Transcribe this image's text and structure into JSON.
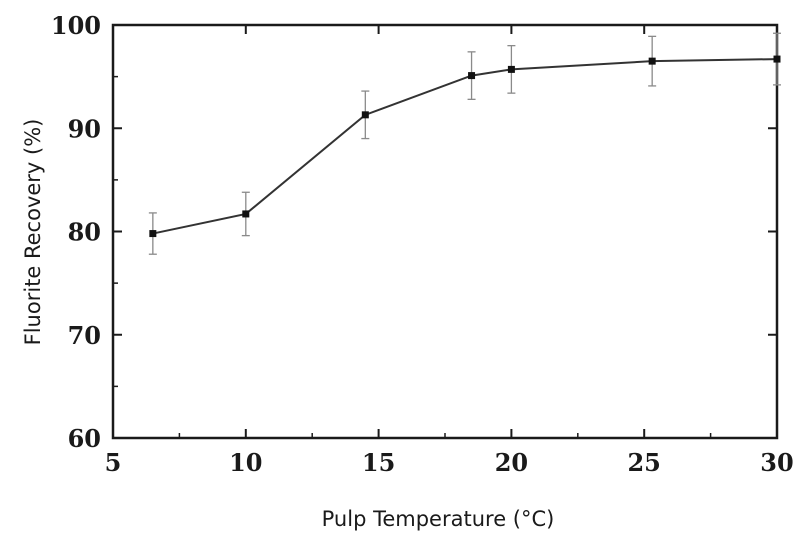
{
  "chart_data": {
    "type": "line",
    "xlabel": "Pulp Temperature (°C)",
    "ylabel": "Fluorite Recovery (%)",
    "xlim": [
      5,
      30
    ],
    "ylim": [
      60,
      100
    ],
    "xticks": [
      5,
      10,
      15,
      20,
      25,
      30
    ],
    "yticks": [
      60,
      70,
      80,
      90,
      100
    ],
    "grid": false,
    "series": [
      {
        "x": [
          6.5,
          10,
          14.5,
          18.5,
          20,
          25.3,
          30
        ],
        "y": [
          79.8,
          81.7,
          91.3,
          95.1,
          95.7,
          96.5,
          96.7
        ],
        "err": [
          2.0,
          2.1,
          2.3,
          2.3,
          2.3,
          2.4,
          2.5
        ]
      }
    ]
  }
}
